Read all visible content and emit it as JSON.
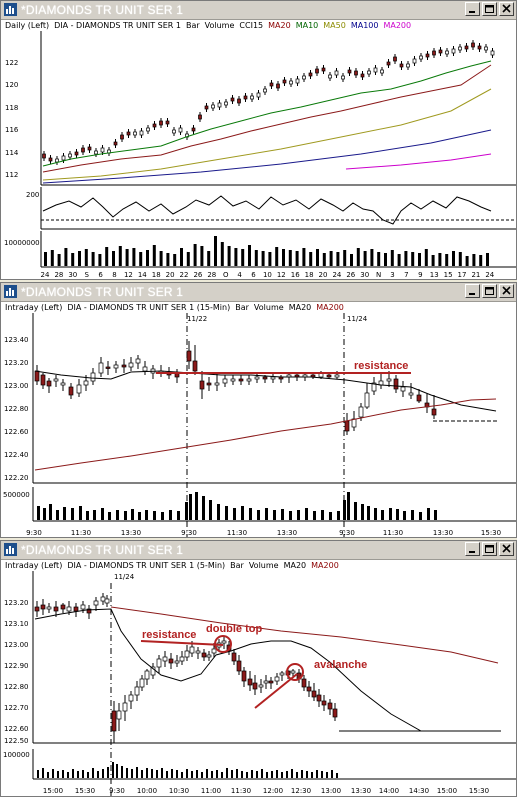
{
  "windows": [
    {
      "title": "*DIAMONDS TR UNIT SER 1",
      "legend": [
        {
          "text": "Daily  (Left)",
          "color": "#000000"
        },
        {
          "text": "DIA - DIAMONDS TR UNIT SER 1",
          "color": "#000000"
        },
        {
          "text": "Bar",
          "color": "#000000"
        },
        {
          "text": "Volume",
          "color": "#000000"
        },
        {
          "text": "CCI15",
          "color": "#000000"
        },
        {
          "text": "MA20",
          "color": "#8b0000"
        },
        {
          "text": "MA10",
          "color": "#006400"
        },
        {
          "text": "MA50",
          "color": "#8b8b00"
        },
        {
          "text": "MA100",
          "color": "#00008b"
        },
        {
          "text": "MA200",
          "color": "#cc00cc"
        }
      ],
      "y_labels": [
        "122",
        "120",
        "118",
        "116",
        "114",
        "112"
      ],
      "cci_label": "200",
      "vol_label": "10000000",
      "x_labels": [
        "24",
        "28",
        "30",
        "S",
        "6",
        "8",
        "12",
        "14",
        "18",
        "20",
        "22",
        "26",
        "28",
        "O",
        "4",
        "6",
        "10",
        "12",
        "16",
        "18",
        "20",
        "24",
        "26",
        "30",
        "N",
        "3",
        "7",
        "9",
        "13",
        "15",
        "17",
        "21",
        "24"
      ]
    },
    {
      "title": "*DIAMONDS TR UNIT SER 1",
      "legend": [
        {
          "text": "Intraday  (Left)",
          "color": "#000000"
        },
        {
          "text": "DIA - DIAMONDS TR UNIT SER 1 (15-Min)",
          "color": "#000000"
        },
        {
          "text": "Bar",
          "color": "#000000"
        },
        {
          "text": "Volume",
          "color": "#000000"
        },
        {
          "text": "MA20",
          "color": "#000000"
        },
        {
          "text": "MA200",
          "color": "#8b0000"
        }
      ],
      "y_labels": [
        "123.40",
        "123.20",
        "123.00",
        "122.80",
        "122.60",
        "122.40",
        "122.20"
      ],
      "vol_label": "500000",
      "date_markers": [
        "11/22",
        "11/24"
      ],
      "annotations": [
        "resistance"
      ],
      "x_labels": [
        "9:30",
        "11:30",
        "13:30",
        "9:30",
        "11:30",
        "13:30",
        "9:30",
        "11:30",
        "13:30",
        "15:30"
      ]
    },
    {
      "title": "*DIAMONDS TR UNIT SER 1",
      "legend": [
        {
          "text": "Intraday  (Left)",
          "color": "#000000"
        },
        {
          "text": "DIA - DIAMONDS TR UNIT SER 1 (5-Min)",
          "color": "#000000"
        },
        {
          "text": "Bar",
          "color": "#000000"
        },
        {
          "text": "Volume",
          "color": "#000000"
        },
        {
          "text": "MA20",
          "color": "#000000"
        },
        {
          "text": "MA200",
          "color": "#8b0000"
        }
      ],
      "y_labels": [
        "123.20",
        "123.10",
        "123.00",
        "122.90",
        "122.80",
        "122.70",
        "122.60",
        "122.50"
      ],
      "vol_label": "100000",
      "date_markers": [
        "11/24"
      ],
      "annotations": [
        "resistance",
        "double top",
        "avalanche"
      ],
      "x_labels": [
        "15:00",
        "15:30",
        "9:30",
        "10:00",
        "10:30",
        "11:00",
        "11:30",
        "12:00",
        "12:30",
        "13:00",
        "13:30",
        "14:00",
        "14:30",
        "15:00",
        "15:30"
      ]
    }
  ],
  "colors": {
    "up_candle": "#ffffff",
    "down_candle": "#8b1a1a",
    "annotation": "#b22222"
  }
}
